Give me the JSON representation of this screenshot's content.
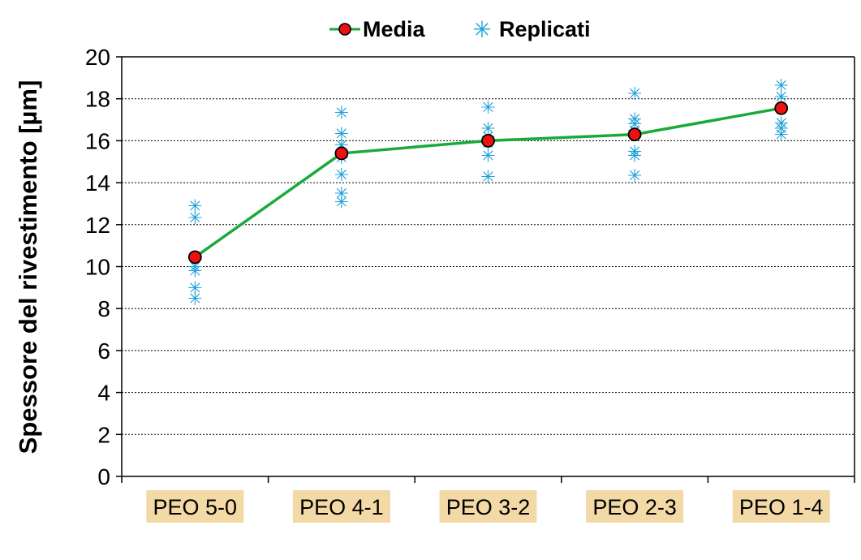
{
  "chart_data": {
    "type": "line",
    "title": "",
    "xlabel": "",
    "ylabel": "Spessore del rivestimento [µm]",
    "ylim": [
      0,
      20
    ],
    "yticks": [
      0,
      2,
      4,
      6,
      8,
      10,
      12,
      14,
      16,
      18,
      20
    ],
    "grid": "horizontal-dotted",
    "legend_position": "top-center",
    "categories": [
      "PEO 5-0",
      "PEO 4-1",
      "PEO 3-2",
      "PEO 2-3",
      "PEO 1-4"
    ],
    "category_label_bg": "#f2d9a6",
    "series": [
      {
        "name": "Media",
        "kind": "line-marker",
        "line_color": "#1aaa3b",
        "marker_color": "#ee1111",
        "values": [
          10.45,
          15.4,
          16.0,
          16.3,
          17.55
        ]
      },
      {
        "name": "Replicati",
        "kind": "scatter-star",
        "color": "#1fa0d9",
        "points": [
          [
            12.9,
            12.35,
            10.0,
            9.8,
            9.0,
            8.5
          ],
          [
            17.35,
            16.35,
            15.8,
            15.2,
            14.4,
            13.5,
            13.1
          ],
          [
            17.6,
            16.6,
            16.2,
            15.9,
            15.3,
            14.3
          ],
          [
            18.25,
            17.05,
            16.8,
            16.5,
            15.5,
            15.3,
            14.35
          ],
          [
            18.65,
            18.1,
            16.85,
            16.6,
            16.3
          ]
        ]
      }
    ]
  }
}
